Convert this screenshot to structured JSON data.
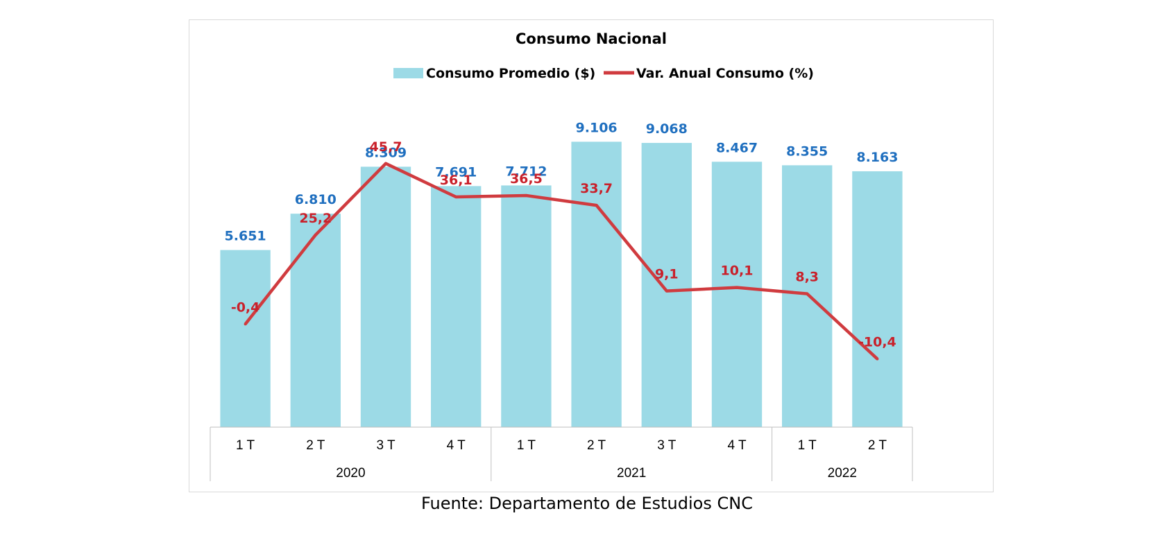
{
  "source": "Fuente: Departamento de Estudios CNC",
  "colors": {
    "bar": "#9cdae6",
    "line": "#d03b3f",
    "bar_label": "#1f6fbf",
    "line_label": "#c9202a",
    "axis": "#bfbfbf"
  },
  "chart_data": {
    "type": "bar",
    "title": "Consumo Nacional",
    "legend_position": "top",
    "categories": [
      "1 T",
      "2 T",
      "3 T",
      "4 T",
      "1 T",
      "2 T",
      "3 T",
      "4 T",
      "1 T",
      "2 T"
    ],
    "groups": [
      {
        "label": "2020",
        "count": 4
      },
      {
        "label": "2021",
        "count": 4
      },
      {
        "label": "2022",
        "count": 2
      }
    ],
    "series": [
      {
        "name": "Consumo Promedio ($)",
        "type": "bar",
        "axis": "primary",
        "values": [
          5651,
          6810,
          8309,
          7691,
          7712,
          9106,
          9068,
          8467,
          8355,
          8163
        ],
        "labels": [
          "5.651",
          "6.810",
          "8.309",
          "7.691",
          "7.712",
          "9.106",
          "9.068",
          "8.467",
          "8.355",
          "8.163"
        ]
      },
      {
        "name": "Var. Anual Consumo (%)",
        "type": "line",
        "axis": "secondary",
        "values": [
          -0.4,
          25.2,
          45.7,
          36.1,
          36.5,
          33.7,
          9.1,
          10.1,
          8.3,
          -10.4
        ],
        "labels": [
          "-0,4",
          "25,2",
          "45,7",
          "36,1",
          "36,5",
          "33,7",
          "9,1",
          "10,1",
          "8,3",
          "-10,4"
        ]
      }
    ],
    "ylim": [
      0,
      10000
    ],
    "y2lim": [
      -30,
      60
    ],
    "grid": false
  }
}
